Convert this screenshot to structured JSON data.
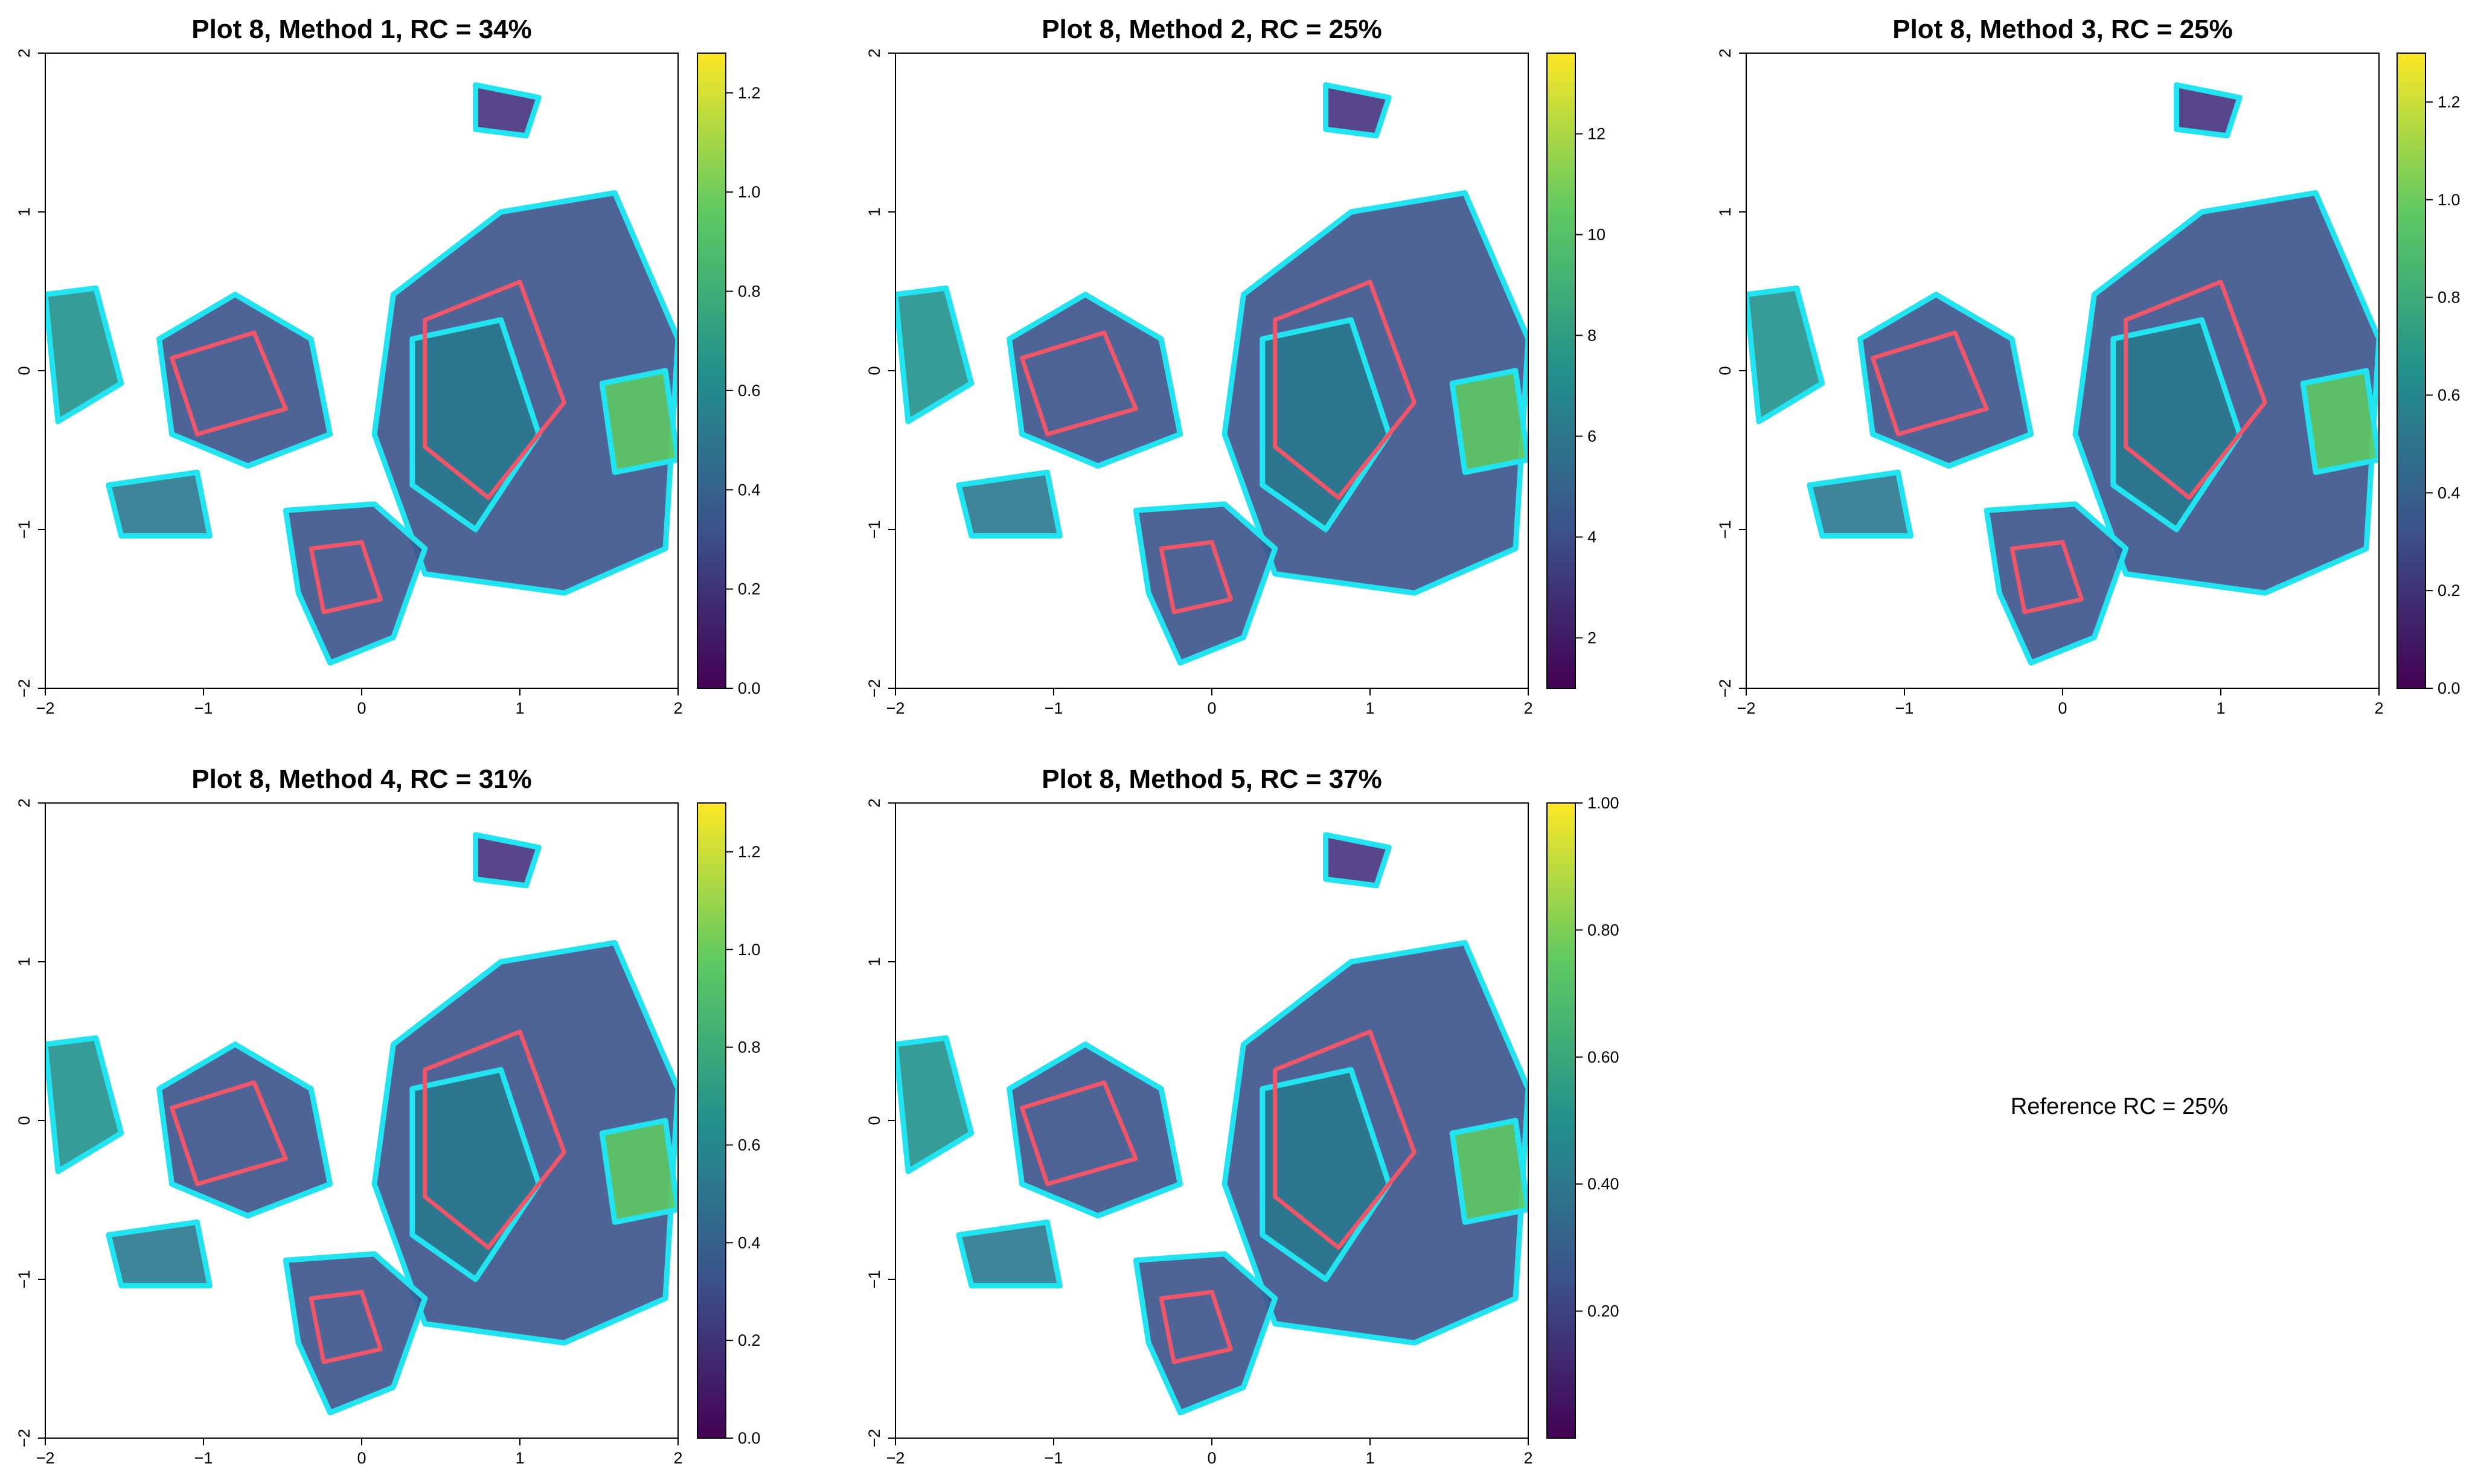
{
  "reference_text": "Reference RC = 25%",
  "colors": {
    "outline_cyan": "#22e3f0",
    "outline_red": "#f0566a",
    "viridis": [
      "#440154",
      "#3b528b",
      "#21918c",
      "#5ec962",
      "#fde725"
    ]
  },
  "chart_data": [
    {
      "type": "heatmap",
      "title": "Plot 8, Method 1, RC = 34%",
      "xlim": [
        -2,
        2
      ],
      "ylim": [
        -2,
        2
      ],
      "x_ticks": [
        "−2",
        "−1",
        "0",
        "1",
        "2"
      ],
      "y_ticks": [
        "−2",
        "−1",
        "0",
        "1",
        "2"
      ],
      "colorbar": {
        "min": 0,
        "max": 1.28,
        "ticks": [
          "0.0",
          "0.2",
          "0.4",
          "0.6",
          "0.8",
          "1.0",
          "1.2"
        ],
        "tick_values": [
          0,
          0.2,
          0.4,
          0.6,
          0.8,
          1.0,
          1.2
        ]
      }
    },
    {
      "type": "heatmap",
      "title": "Plot 8, Method 2, RC = 25%",
      "xlim": [
        -2,
        2
      ],
      "ylim": [
        -2,
        2
      ],
      "x_ticks": [
        "−2",
        "−1",
        "0",
        "1",
        "2"
      ],
      "y_ticks": [
        "−2",
        "−1",
        "0",
        "1",
        "2"
      ],
      "colorbar": {
        "min": 1,
        "max": 13.6,
        "ticks": [
          "2",
          "4",
          "6",
          "8",
          "10",
          "12"
        ],
        "tick_values": [
          2,
          4,
          6,
          8,
          10,
          12
        ]
      }
    },
    {
      "type": "heatmap",
      "title": "Plot 8, Method 3, RC = 25%",
      "xlim": [
        -2,
        2
      ],
      "ylim": [
        -2,
        2
      ],
      "x_ticks": [
        "−2",
        "−1",
        "0",
        "1",
        "2"
      ],
      "y_ticks": [
        "−2",
        "−1",
        "0",
        "1",
        "2"
      ],
      "colorbar": {
        "min": 0,
        "max": 1.3,
        "ticks": [
          "0.0",
          "0.2",
          "0.4",
          "0.6",
          "0.8",
          "1.0",
          "1.2"
        ],
        "tick_values": [
          0,
          0.2,
          0.4,
          0.6,
          0.8,
          1.0,
          1.2
        ]
      }
    },
    {
      "type": "heatmap",
      "title": "Plot 8, Method 4, RC = 31%",
      "xlim": [
        -2,
        2
      ],
      "ylim": [
        -2,
        2
      ],
      "x_ticks": [
        "−2",
        "−1",
        "0",
        "1",
        "2"
      ],
      "y_ticks": [
        "−2",
        "−1",
        "0",
        "1",
        "2"
      ],
      "colorbar": {
        "min": 0,
        "max": 1.3,
        "ticks": [
          "0.0",
          "0.2",
          "0.4",
          "0.6",
          "0.8",
          "1.0",
          "1.2"
        ],
        "tick_values": [
          0,
          0.2,
          0.4,
          0.6,
          0.8,
          1.0,
          1.2
        ]
      }
    },
    {
      "type": "heatmap",
      "title": "Plot 8, Method 5, RC = 37%",
      "xlim": [
        -2,
        2
      ],
      "ylim": [
        -2,
        2
      ],
      "x_ticks": [
        "−2",
        "−1",
        "0",
        "1",
        "2"
      ],
      "y_ticks": [
        "−2",
        "−1",
        "0",
        "1",
        "2"
      ],
      "colorbar": {
        "min": 0,
        "max": 1.0,
        "ticks": [
          "0.20",
          "0.40",
          "0.60",
          "0.80",
          "1.00"
        ],
        "tick_values": [
          0.2,
          0.4,
          0.6,
          0.8,
          1.0
        ]
      }
    }
  ]
}
